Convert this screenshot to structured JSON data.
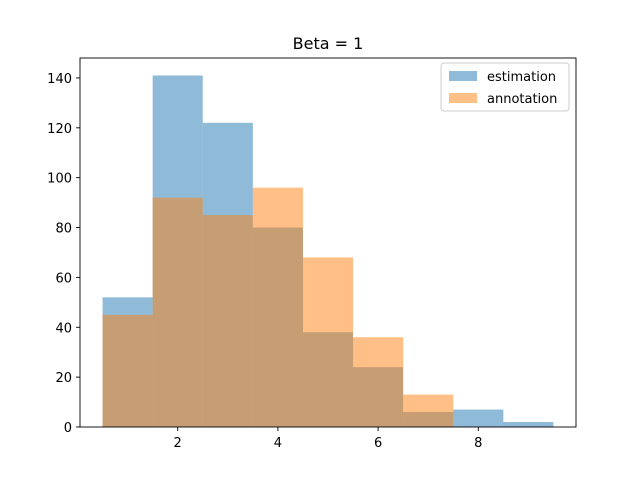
{
  "chart_data": {
    "type": "bar",
    "title": "Beta = 1",
    "xlabel": "",
    "ylabel": "",
    "xlim": [
      0.05,
      9.95
    ],
    "ylim": [
      0,
      148
    ],
    "x_ticks": [
      2,
      4,
      6,
      8
    ],
    "y_ticks": [
      0,
      20,
      40,
      60,
      80,
      100,
      120,
      140
    ],
    "bin_edges": [
      0.5,
      1.5,
      2.5,
      3.5,
      4.5,
      5.5,
      6.5,
      7.5,
      8.5,
      9.5
    ],
    "series": [
      {
        "name": "estimation",
        "values": [
          52,
          141,
          122,
          80,
          38,
          24,
          6,
          7,
          2
        ],
        "color": "#1f77b4",
        "opacity": 0.5
      },
      {
        "name": "annotation",
        "values": [
          45,
          92,
          85,
          96,
          68,
          36,
          13,
          0,
          0
        ],
        "color": "#ff7f0e",
        "opacity": 0.5
      }
    ],
    "grid": false,
    "legend_position": "top-right"
  }
}
